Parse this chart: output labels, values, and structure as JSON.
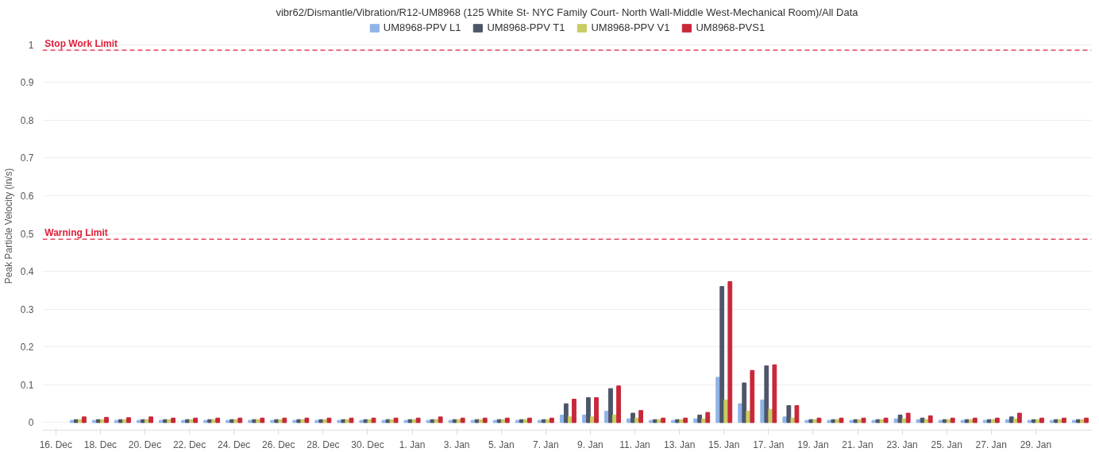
{
  "chart_data": {
    "type": "bar",
    "title": "vibr62/Dismantle/Vibration/R12-UM8968 (125 White St- NYC Family Court- North Wall-Middle West-Mechanical Room)/All Data",
    "ylabel": "Peak Particle Velocity (in/s)",
    "categories": [
      "16. Dec",
      null,
      "18. Dec",
      null,
      "20. Dec",
      null,
      "22. Dec",
      null,
      "24. Dec",
      null,
      "26. Dec",
      null,
      "28. Dec",
      null,
      "30. Dec",
      null,
      "1. Jan",
      null,
      "3. Jan",
      null,
      "5. Jan",
      null,
      "7. Jan",
      null,
      "9. Jan",
      null,
      "11. Jan",
      null,
      "13. Jan",
      null,
      "15. Jan",
      null,
      "17. Jan",
      null,
      "19. Jan",
      null,
      "21. Jan",
      null,
      "23. Jan",
      null,
      "25. Jan",
      null,
      "27. Jan",
      null,
      "29. Jan",
      null,
      null
    ],
    "series": [
      {
        "name": "UM8968-PPV L1",
        "color": "#8fb4e8",
        "values": [
          null,
          0.006,
          0.006,
          0.006,
          0.006,
          0.006,
          0.006,
          0.006,
          0.006,
          0.006,
          0.006,
          0.006,
          0.006,
          0.006,
          0.006,
          0.006,
          0.006,
          0.006,
          0.006,
          0.006,
          0.006,
          0.006,
          0.006,
          0.02,
          0.02,
          0.03,
          0.01,
          0.006,
          0.006,
          0.01,
          0.12,
          0.05,
          0.06,
          0.015,
          0.006,
          0.006,
          0.006,
          0.006,
          0.01,
          0.008,
          0.006,
          0.006,
          0.006,
          0.008,
          0.006,
          0.006,
          0.006
        ]
      },
      {
        "name": "UM8968-PPV T1",
        "color": "#4d5668",
        "values": [
          null,
          0.008,
          0.008,
          0.008,
          0.008,
          0.008,
          0.008,
          0.008,
          0.008,
          0.008,
          0.008,
          0.008,
          0.008,
          0.008,
          0.008,
          0.008,
          0.008,
          0.008,
          0.008,
          0.008,
          0.008,
          0.008,
          0.008,
          0.05,
          0.066,
          0.09,
          0.025,
          0.008,
          0.008,
          0.02,
          0.36,
          0.105,
          0.15,
          0.045,
          0.008,
          0.008,
          0.008,
          0.008,
          0.02,
          0.012,
          0.008,
          0.008,
          0.008,
          0.015,
          0.008,
          0.008,
          0.008
        ]
      },
      {
        "name": "UM8968-PPV V1",
        "color": "#c9cc62",
        "values": [
          null,
          0.008,
          0.008,
          0.008,
          0.008,
          0.008,
          0.008,
          0.008,
          0.008,
          0.008,
          0.008,
          0.008,
          0.008,
          0.008,
          0.008,
          0.008,
          0.008,
          0.008,
          0.008,
          0.008,
          0.008,
          0.008,
          0.008,
          0.015,
          0.015,
          0.02,
          0.012,
          0.008,
          0.008,
          0.01,
          0.06,
          0.03,
          0.035,
          0.012,
          0.008,
          0.008,
          0.008,
          0.008,
          0.01,
          0.008,
          0.008,
          0.008,
          0.008,
          0.01,
          0.008,
          0.008,
          0.008
        ]
      },
      {
        "name": "UM8968-PVS1",
        "color": "#c8283a",
        "values": [
          null,
          0.015,
          0.014,
          0.013,
          0.015,
          0.012,
          0.012,
          0.012,
          0.012,
          0.012,
          0.012,
          0.012,
          0.012,
          0.012,
          0.012,
          0.012,
          0.012,
          0.015,
          0.012,
          0.012,
          0.012,
          0.012,
          0.012,
          0.062,
          0.066,
          0.097,
          0.032,
          0.012,
          0.012,
          0.027,
          0.373,
          0.138,
          0.153,
          0.045,
          0.012,
          0.012,
          0.012,
          0.012,
          0.025,
          0.018,
          0.012,
          0.012,
          0.012,
          0.025,
          0.012,
          0.012,
          0.012
        ]
      }
    ],
    "ylim": [
      -0.02,
      1.06
    ],
    "yticks": [
      0,
      0.1,
      0.2,
      0.3,
      0.4,
      0.5,
      0.6,
      0.7,
      0.8,
      0.9,
      1
    ],
    "ref_lines": [
      {
        "axis": "y",
        "value": 0.985,
        "label": "Stop Work Limit",
        "color": "#e0203a",
        "line_style": "dashed"
      },
      {
        "axis": "y",
        "value": 0.485,
        "label": "Warning Limit",
        "color": "#e0203a",
        "line_style": "dashed"
      }
    ],
    "grid": "y",
    "legend": "top"
  }
}
